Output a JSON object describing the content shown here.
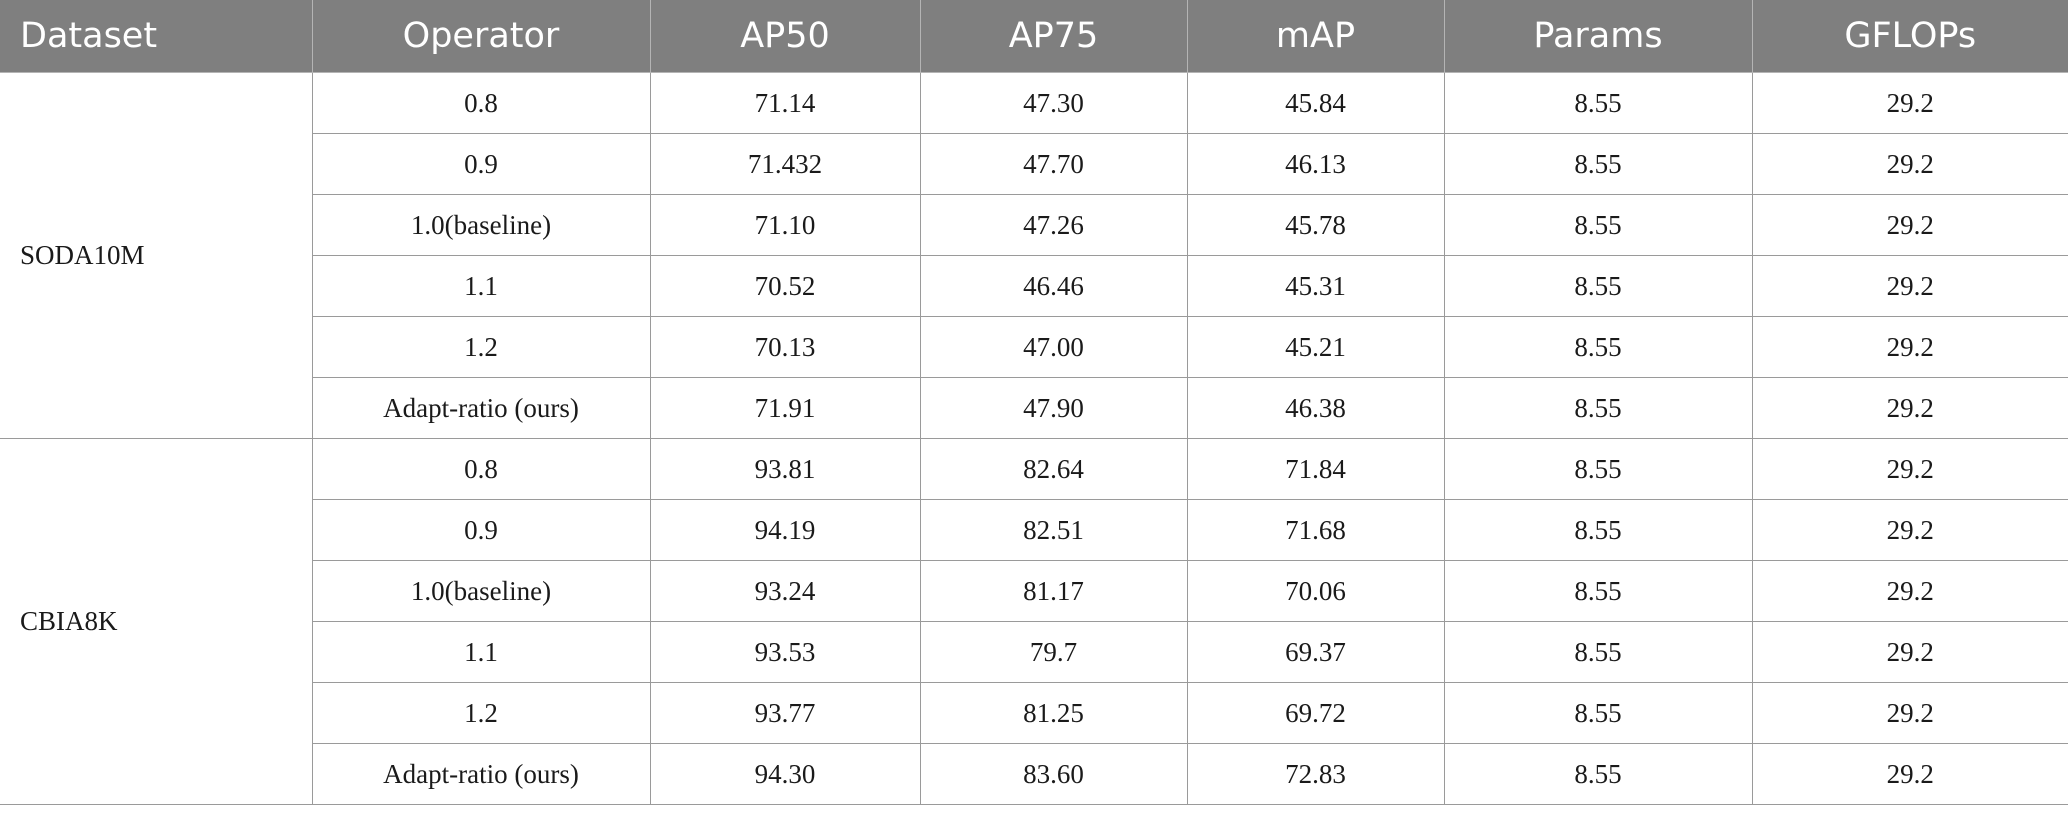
{
  "table": {
    "columns": [
      "Dataset",
      "Operator",
      "AP50",
      "AP75",
      "mAP",
      "Params",
      "GFLOPs"
    ],
    "groups": [
      {
        "dataset": "SODA10M",
        "rows": [
          [
            "0.8",
            "71.14",
            "47.30",
            "45.84",
            "8.55",
            "29.2"
          ],
          [
            "0.9",
            "71.432",
            "47.70",
            "46.13",
            "8.55",
            "29.2"
          ],
          [
            "1.0(baseline)",
            "71.10",
            "47.26",
            "45.78",
            "8.55",
            "29.2"
          ],
          [
            "1.1",
            "70.52",
            "46.46",
            "45.31",
            "8.55",
            "29.2"
          ],
          [
            "1.2",
            "70.13",
            "47.00",
            "45.21",
            "8.55",
            "29.2"
          ],
          [
            "Adapt-ratio (ours)",
            "71.91",
            "47.90",
            "46.38",
            "8.55",
            "29.2"
          ]
        ]
      },
      {
        "dataset": "CBIA8K",
        "rows": [
          [
            "0.8",
            "93.81",
            "82.64",
            "71.84",
            "8.55",
            "29.2"
          ],
          [
            "0.9",
            "94.19",
            "82.51",
            "71.68",
            "8.55",
            "29.2"
          ],
          [
            "1.0(baseline)",
            "93.24",
            "81.17",
            "70.06",
            "8.55",
            "29.2"
          ],
          [
            "1.1",
            "93.53",
            "79.7",
            "69.37",
            "8.55",
            "29.2"
          ],
          [
            "1.2",
            "93.77",
            "81.25",
            "69.72",
            "8.55",
            "29.2"
          ],
          [
            "Adapt-ratio (ours)",
            "94.30",
            "83.60",
            "72.83",
            "8.55",
            "29.2"
          ]
        ]
      }
    ]
  }
}
